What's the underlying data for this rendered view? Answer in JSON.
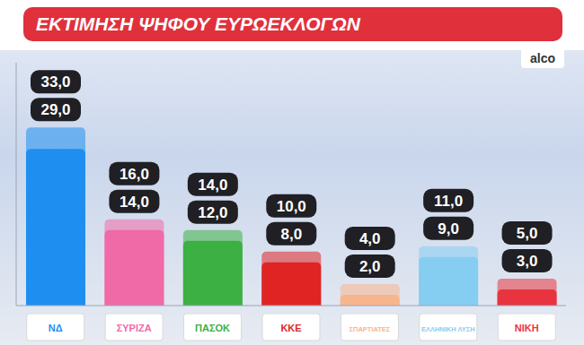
{
  "chart_data": {
    "type": "bar",
    "title": "ΕΚΤΙΜΗΣΗ ΨΗΦΟΥ ΕΥΡΩΕΚΛΟΓΩΝ",
    "source": "alco",
    "categories": [
      "ΝΔ",
      "ΣΥΡΙΖΑ",
      "ΠΑΣΟΚ",
      "ΚΚΕ",
      "ΣΠΑΡΤΙΑΤΕΣ",
      "ΕΛΛΗΝΙΚΗ ΛΥΣΗ",
      "ΝΙΚΗ"
    ],
    "values": [
      33,
      16,
      14,
      10,
      4,
      11,
      5
    ],
    "value_labels": [
      "33,0",
      "16,0",
      "14,0",
      "10,0",
      "4,0",
      "11,0",
      "5,0"
    ],
    "low_values": [
      29,
      14,
      12,
      8,
      2,
      9,
      3
    ],
    "low_labels": [
      "29,0",
      "14,0",
      "12,0",
      "8,0",
      "2,0",
      "9,0",
      "3,0"
    ],
    "colors": [
      "#1e8ff0",
      "#f06aa8",
      "#3cb043",
      "#e02424",
      "#f7b58c",
      "#86cdf2",
      "#e8343e"
    ],
    "ylim": [
      0,
      45
    ],
    "tick_labels": false,
    "data_labels": true
  }
}
